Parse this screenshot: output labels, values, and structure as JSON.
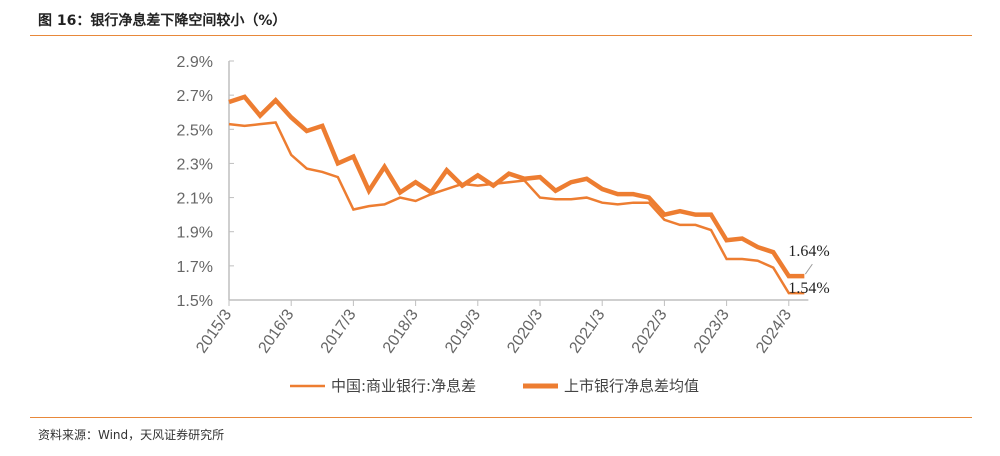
{
  "header": {
    "title": "图 16：银行净息差下降空间较小（%）"
  },
  "footer": {
    "source": "资料来源：Wind，天风证券研究所"
  },
  "chart_data": {
    "type": "line",
    "title": "",
    "ylim": [
      1.5,
      2.9
    ],
    "yticks": [
      "2.9%",
      "2.7%",
      "2.5%",
      "2.3%",
      "2.1%",
      "1.9%",
      "1.7%",
      "1.5%"
    ],
    "xticks": [
      "2015/3",
      "2016/3",
      "2017/3",
      "2018/3",
      "2019/3",
      "2020/3",
      "2021/3",
      "2022/3",
      "2023/3",
      "2024/3"
    ],
    "x_start": "2015/3",
    "x_frequency": "quarterly",
    "legend": "bottom",
    "colors": {
      "line": "#ed7d31",
      "axis": "#bfbfbf"
    },
    "series": [
      {
        "name": "中国:商业银行:净息差",
        "style": "thin",
        "values": [
          2.53,
          2.52,
          2.53,
          2.54,
          2.35,
          2.27,
          2.25,
          2.22,
          2.03,
          2.05,
          2.06,
          2.1,
          2.08,
          2.12,
          2.15,
          2.18,
          2.17,
          2.18,
          2.19,
          2.2,
          2.1,
          2.09,
          2.09,
          2.1,
          2.07,
          2.06,
          2.07,
          2.07,
          1.97,
          1.94,
          1.94,
          1.91,
          1.74,
          1.74,
          1.73,
          1.69,
          1.54,
          1.54
        ]
      },
      {
        "name": "上市银行净息差均值",
        "style": "thick",
        "values": [
          2.66,
          2.69,
          2.58,
          2.67,
          2.57,
          2.49,
          2.52,
          2.3,
          2.34,
          2.14,
          2.28,
          2.13,
          2.19,
          2.13,
          2.26,
          2.17,
          2.23,
          2.17,
          2.24,
          2.21,
          2.22,
          2.14,
          2.19,
          2.21,
          2.15,
          2.12,
          2.12,
          2.1,
          2.0,
          2.02,
          2.0,
          2.0,
          1.85,
          1.86,
          1.81,
          1.78,
          1.64,
          1.64
        ]
      }
    ],
    "annotations": [
      "1.64%",
      "1.54%"
    ]
  }
}
